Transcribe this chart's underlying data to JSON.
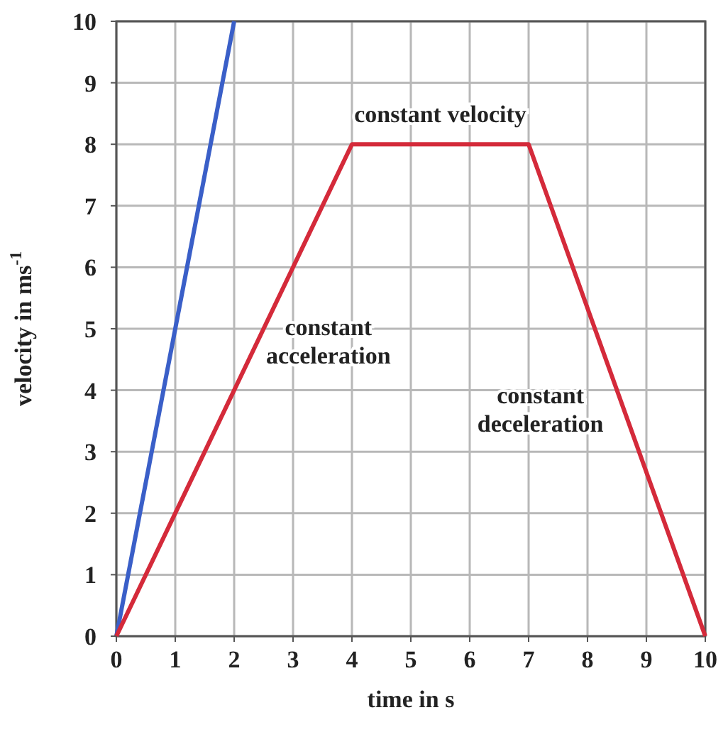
{
  "chart_data": {
    "type": "line",
    "xlabel": "time in s",
    "ylabel": "velocity in ms$^{-1}$",
    "xlim": [
      0,
      10
    ],
    "ylim": [
      0,
      10
    ],
    "xticks": [
      0,
      1,
      2,
      3,
      4,
      5,
      6,
      7,
      8,
      9,
      10
    ],
    "yticks": [
      0,
      1,
      2,
      3,
      4,
      5,
      6,
      7,
      8,
      9,
      10
    ],
    "grid": true,
    "marker": "none",
    "line_style": "solid",
    "series": [
      {
        "color": "#3a5fc8",
        "x": [
          0,
          2
        ],
        "values": [
          0,
          10
        ]
      },
      {
        "color": "#d42a3a",
        "x": [
          0,
          4,
          7,
          10
        ],
        "values": [
          0,
          8,
          8,
          0
        ]
      }
    ],
    "annotations": [
      "constant\nacceleration",
      "constant velocity",
      "constant\ndeceleration"
    ]
  }
}
